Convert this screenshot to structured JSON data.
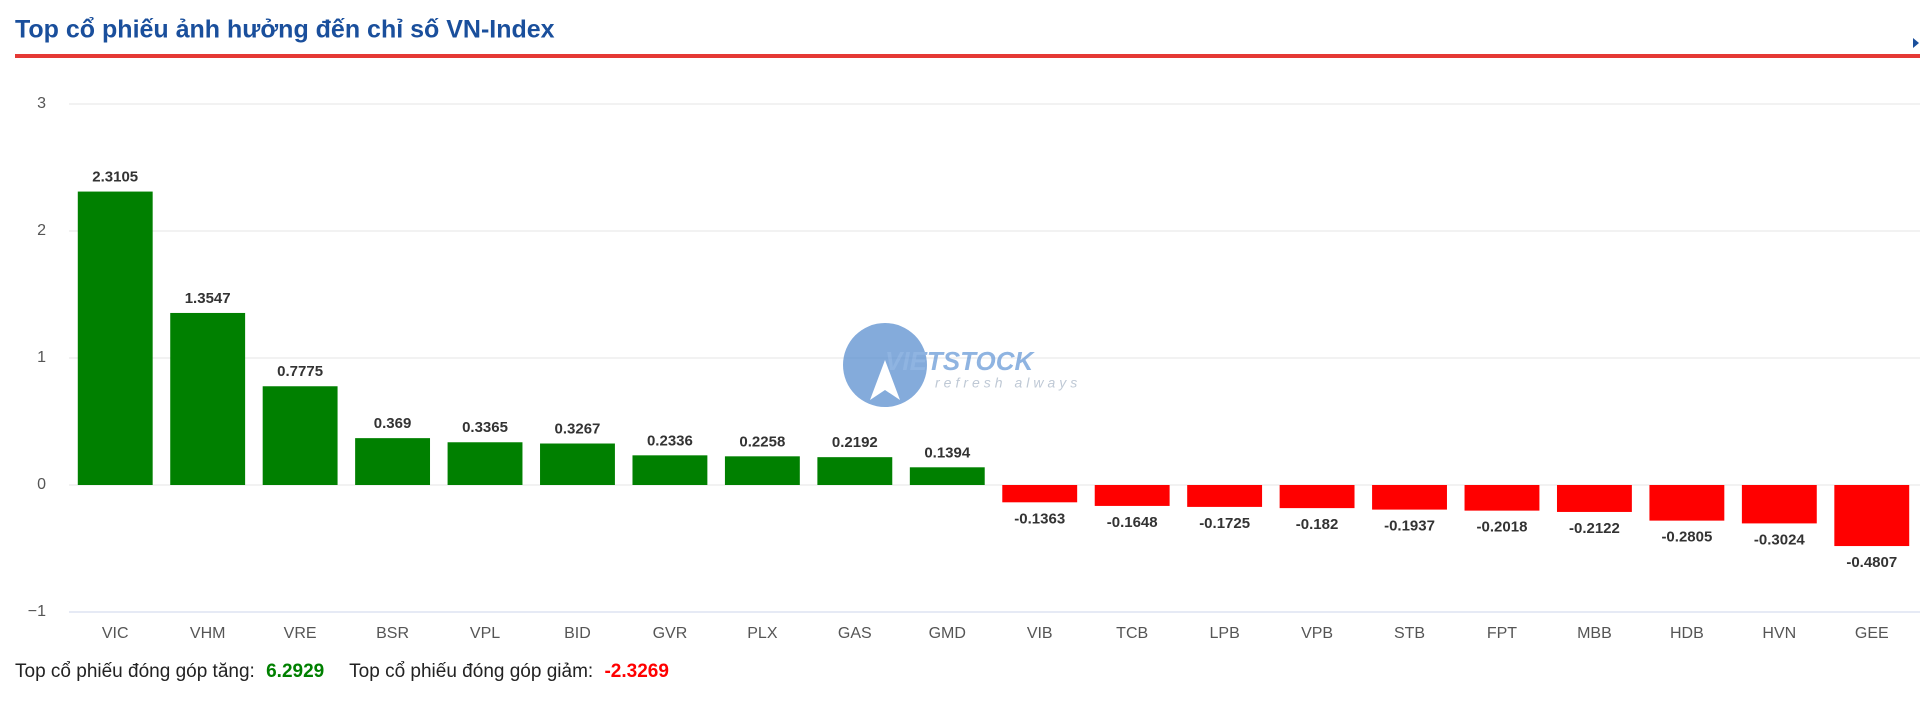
{
  "chart_data": {
    "type": "bar",
    "title": "Top cổ phiếu ảnh hưởng đến chỉ số VN-Index",
    "categories": [
      "VIC",
      "VHM",
      "VRE",
      "BSR",
      "VPL",
      "BID",
      "GVR",
      "PLX",
      "GAS",
      "GMD",
      "VIB",
      "TCB",
      "LPB",
      "VPB",
      "STB",
      "FPT",
      "MBB",
      "HDB",
      "HVN",
      "GEE"
    ],
    "values": [
      2.3105,
      1.3547,
      0.7775,
      0.369,
      0.3365,
      0.3267,
      0.2336,
      0.2258,
      0.2192,
      0.1394,
      -0.1363,
      -0.1648,
      -0.1725,
      -0.182,
      -0.1937,
      -0.2018,
      -0.2122,
      -0.2805,
      -0.3024,
      -0.4807
    ],
    "positive_color": "#008000",
    "negative_color": "#ff0000",
    "ylim": [
      -1,
      3
    ],
    "yticks": [
      {
        "value": -1,
        "label": "−1"
      },
      0,
      1,
      2,
      3
    ],
    "grid": true,
    "watermark": {
      "brand": "VIETSTOCK",
      "tagline": "refresh always"
    },
    "summary": {
      "up_label": "Top cổ phiếu đóng góp tăng:",
      "up_value": 6.2929,
      "down_label": "Top cổ phiếu đóng góp giảm:",
      "down_value": -2.3269
    }
  }
}
